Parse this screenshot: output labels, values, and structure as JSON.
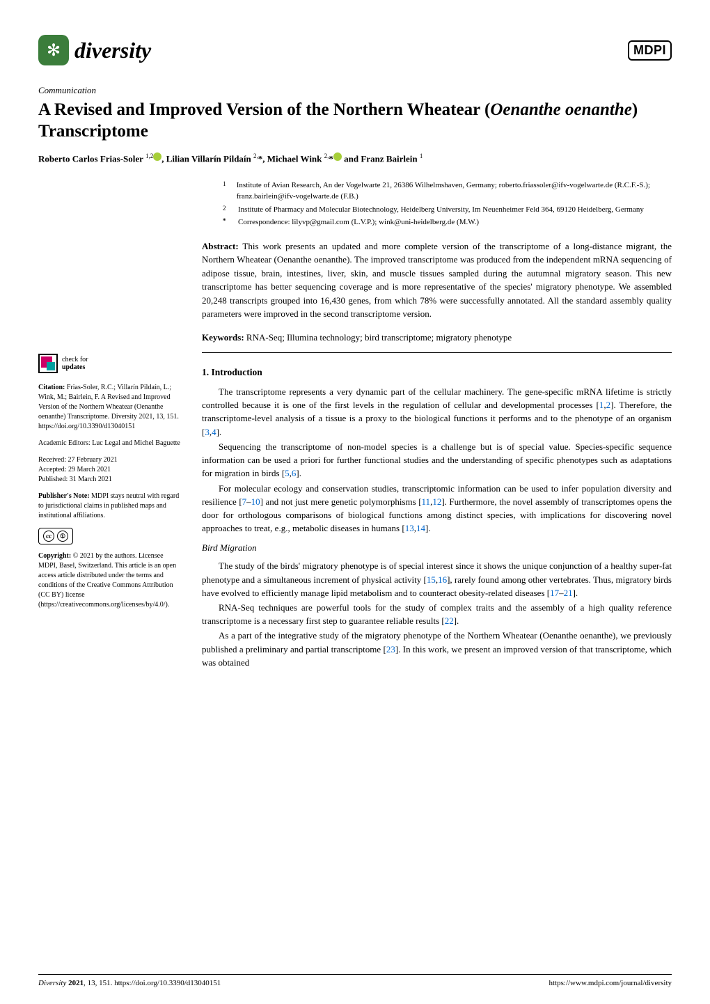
{
  "journal": {
    "name": "diversity",
    "publisher": "MDPI",
    "logo_color": "#3b7d3b"
  },
  "article": {
    "type": "Communication",
    "title_pre": "A Revised and Improved Version of the Northern Wheatear (",
    "title_species": "Oenanthe oenanthe",
    "title_post": ") Transcriptome",
    "authors_html": "Roberto Carlos Frias-Soler ",
    "author1_sup": "1,2",
    "author2": ", Lilian Villarín Pildaín ",
    "author2_sup": "2,",
    "author2_star": "*, Michael Wink ",
    "author3_sup": "2,",
    "author3_star": "*",
    "author4": " and Franz Bairlein ",
    "author4_sup": "1"
  },
  "affiliations": [
    {
      "num": "1",
      "text": "Institute of Avian Research, An der Vogelwarte 21, 26386 Wilhelmshaven, Germany; roberto.friassoler@ifv-vogelwarte.de (R.C.F.-S.); franz.bairlein@ifv-vogelwarte.de (F.B.)"
    },
    {
      "num": "2",
      "text": "Institute of Pharmacy and Molecular Biotechnology, Heidelberg University, Im Neuenheimer Feld 364, 69120 Heidelberg, Germany"
    },
    {
      "num": "*",
      "text": "Correspondence: lilyvp@gmail.com (L.V.P.); wink@uni-heidelberg.de (M.W.)"
    }
  ],
  "abstract": {
    "label": "Abstract:",
    "text": " This work presents an updated and more complete version of the transcriptome of a long-distance migrant, the Northern Wheatear (Oenanthe oenanthe). The improved transcriptome was produced from the independent mRNA sequencing of adipose tissue, brain, intestines, liver, skin, and muscle tissues sampled during the autumnal migratory season. This new transcriptome has better sequencing coverage and is more representative of the species' migratory phenotype. We assembled 20,248 transcripts grouped into 16,430 genes, from which 78% were successfully annotated. All the standard assembly quality parameters were improved in the second transcriptome version."
  },
  "keywords": {
    "label": "Keywords:",
    "text": " RNA-Seq; Illumina technology; bird transcriptome; migratory phenotype"
  },
  "sidebar": {
    "check_updates": "check for",
    "check_updates2": "updates",
    "citation_label": "Citation:",
    "citation": " Frias-Soler, R.C.; Villarín Pildaín, L.; Wink, M.; Bairlein, F. A Revised and Improved Version of the Northern Wheatear (Oenanthe oenanthe) Transcriptome. Diversity 2021, 13, 151. https://doi.org/10.3390/d13040151",
    "editors": "Academic Editors: Luc Legal and Michel Baguette",
    "received": "Received: 27 February 2021",
    "accepted": "Accepted: 29 March 2021",
    "published": "Published: 31 March 2021",
    "pubnote_label": "Publisher's Note:",
    "pubnote": " MDPI stays neutral with regard to jurisdictional claims in published maps and institutional affiliations.",
    "copyright_label": "Copyright:",
    "copyright": " © 2021 by the authors. Licensee MDPI, Basel, Switzerland. This article is an open access article distributed under the terms and conditions of the Creative Commons Attribution (CC BY) license (https://creativecommons.org/licenses/by/4.0/)."
  },
  "sections": {
    "intro_heading": "1. Introduction",
    "p1a": "The transcriptome represents a very dynamic part of the cellular machinery. The gene-specific mRNA lifetime is strictly controlled because it is one of the first levels in the regulation of cellular and developmental processes [",
    "p1_ref1": "1",
    "p1_mid1": ",",
    "p1_ref2": "2",
    "p1b": "]. Therefore, the transcriptome-level analysis of a tissue is a proxy to the biological functions it performs and to the phenotype of an organism [",
    "p1_ref3": "3",
    "p1_mid2": ",",
    "p1_ref4": "4",
    "p1c": "].",
    "p2a": "Sequencing the transcriptome of non-model species is a challenge but is of special value. Species-specific sequence information can be used a priori for further functional studies and the understanding of specific phenotypes such as adaptations for migration in birds [",
    "p2_ref1": "5",
    "p2_mid": ",",
    "p2_ref2": "6",
    "p2b": "].",
    "p3a": "For molecular ecology and conservation studies, transcriptomic information can be used to infer population diversity and resilience [",
    "p3_ref1": "7",
    "p3_mid1": "–",
    "p3_ref2": "10",
    "p3b": "] and not just mere genetic polymorphisms [",
    "p3_ref3": "11",
    "p3_mid2": ",",
    "p3_ref4": "12",
    "p3c": "]. Furthermore, the novel assembly of transcriptomes opens the door for orthologous comparisons of biological functions among distinct species, with implications for discovering novel approaches to treat, e.g., metabolic diseases in humans [",
    "p3_ref5": "13",
    "p3_mid3": ",",
    "p3_ref6": "14",
    "p3d": "].",
    "sub_heading": "Bird Migration",
    "p4a": "The study of the birds' migratory phenotype is of special interest since it shows the unique conjunction of a healthy super-fat phenotype and a simultaneous increment of physical activity [",
    "p4_ref1": "15",
    "p4_mid1": ",",
    "p4_ref2": "16",
    "p4b": "], rarely found among other vertebrates. Thus, migratory birds have evolved to efficiently manage lipid metabolism and to counteract obesity-related diseases [",
    "p4_ref3": "17",
    "p4_mid2": "–",
    "p4_ref4": "21",
    "p4c": "].",
    "p5a": "RNA-Seq techniques are powerful tools for the study of complex traits and the assembly of a high quality reference transcriptome is a necessary first step to guarantee reliable results [",
    "p5_ref1": "22",
    "p5b": "].",
    "p6a": "As a part of the integrative study of the migratory phenotype of the Northern Wheatear (Oenanthe oenanthe), we previously published a preliminary and partial transcriptome [",
    "p6_ref1": "23",
    "p6b": "]. In this work, we present an improved version of that transcriptome, which was obtained"
  },
  "footer": {
    "left_journal": "Diversity ",
    "left_year": "2021",
    "left_rest": ", 13, 151. https://doi.org/10.3390/d13040151",
    "right": "https://www.mdpi.com/journal/diversity"
  },
  "colors": {
    "link": "#0066cc",
    "logo_bg": "#3b7d3b",
    "orcid": "#a6ce39"
  }
}
